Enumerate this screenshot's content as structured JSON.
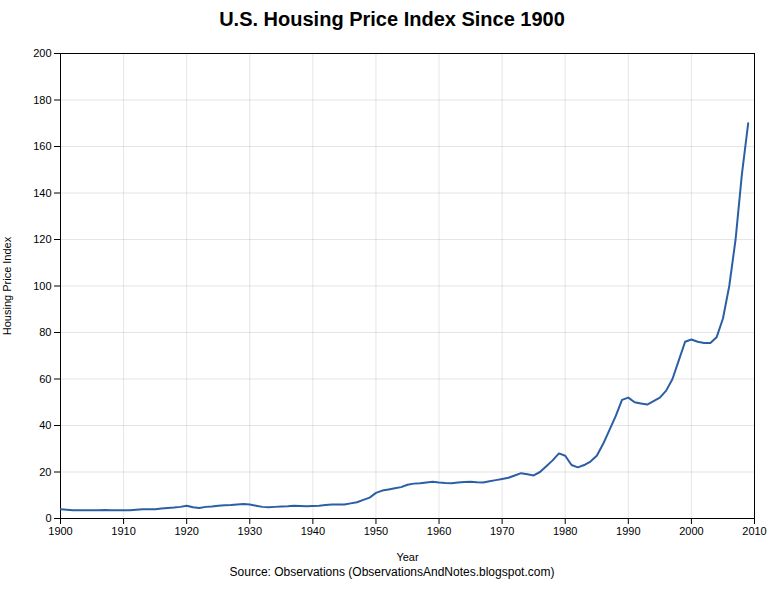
{
  "chart_data": {
    "type": "line",
    "title": "U.S. Housing Price Index Since 1900",
    "xlabel": "Year",
    "ylabel": "Housing Price Index",
    "caption": "Source: Observations (ObservationsAndNotes.blogspot.com)",
    "color": "#2b5fa5",
    "grid": true,
    "xlim": [
      1900,
      2010
    ],
    "ylim": [
      0,
      200
    ],
    "xticks": [
      1900,
      1910,
      1920,
      1930,
      1940,
      1950,
      1960,
      1970,
      1980,
      1990,
      2000,
      2010
    ],
    "yticks": [
      0,
      20,
      40,
      60,
      80,
      100,
      120,
      140,
      160,
      180,
      200
    ],
    "x": [
      1900,
      1901,
      1902,
      1903,
      1904,
      1905,
      1906,
      1907,
      1908,
      1909,
      1910,
      1911,
      1912,
      1913,
      1914,
      1915,
      1916,
      1917,
      1918,
      1919,
      1920,
      1921,
      1922,
      1923,
      1924,
      1925,
      1926,
      1927,
      1928,
      1929,
      1930,
      1931,
      1932,
      1933,
      1934,
      1935,
      1936,
      1937,
      1938,
      1939,
      1940,
      1941,
      1942,
      1943,
      1944,
      1945,
      1946,
      1947,
      1948,
      1949,
      1950,
      1951,
      1952,
      1953,
      1954,
      1955,
      1956,
      1957,
      1958,
      1959,
      1960,
      1961,
      1962,
      1963,
      1964,
      1965,
      1966,
      1967,
      1968,
      1969,
      1970,
      1971,
      1972,
      1973,
      1974,
      1975,
      1976,
      1977,
      1978,
      1979,
      1980,
      1981,
      1982,
      1983,
      1984,
      1985,
      1986,
      1987,
      1988,
      1989,
      1990,
      1991,
      1992,
      1993,
      1994,
      1995,
      1996,
      1997,
      1998,
      1999,
      2000,
      2001,
      2002,
      2003,
      2004,
      2005,
      2006,
      2007,
      2008,
      2009
    ],
    "values": [
      4.0,
      3.8,
      3.6,
      3.5,
      3.5,
      3.5,
      3.6,
      3.7,
      3.6,
      3.5,
      3.5,
      3.6,
      3.8,
      4.0,
      4.0,
      4.0,
      4.3,
      4.5,
      4.7,
      5.0,
      5.5,
      4.8,
      4.5,
      5.0,
      5.2,
      5.5,
      5.7,
      5.8,
      6.0,
      6.2,
      6.0,
      5.5,
      5.0,
      4.8,
      5.0,
      5.2,
      5.3,
      5.5,
      5.4,
      5.3,
      5.4,
      5.5,
      5.8,
      6.0,
      6.0,
      6.0,
      6.5,
      7.0,
      8.0,
      9.0,
      11.0,
      12.0,
      12.5,
      13.0,
      13.5,
      14.5,
      15.0,
      15.2,
      15.5,
      15.8,
      15.5,
      15.3,
      15.2,
      15.5,
      15.7,
      15.8,
      15.6,
      15.5,
      16.0,
      16.5,
      17.0,
      17.5,
      18.5,
      19.5,
      19.0,
      18.5,
      20.0,
      22.5,
      25.0,
      28.0,
      27.0,
      23.0,
      22.0,
      23.0,
      24.5,
      27.0,
      32.0,
      38.0,
      44.0,
      51.0,
      52.0,
      50.0,
      49.5,
      49.0,
      50.5,
      52.0,
      55.0,
      60.0,
      68.0,
      76.0,
      77.0,
      76.0,
      75.5,
      75.5,
      78.0,
      86.0,
      100.0,
      120.0,
      148.0,
      170.0
    ]
  }
}
